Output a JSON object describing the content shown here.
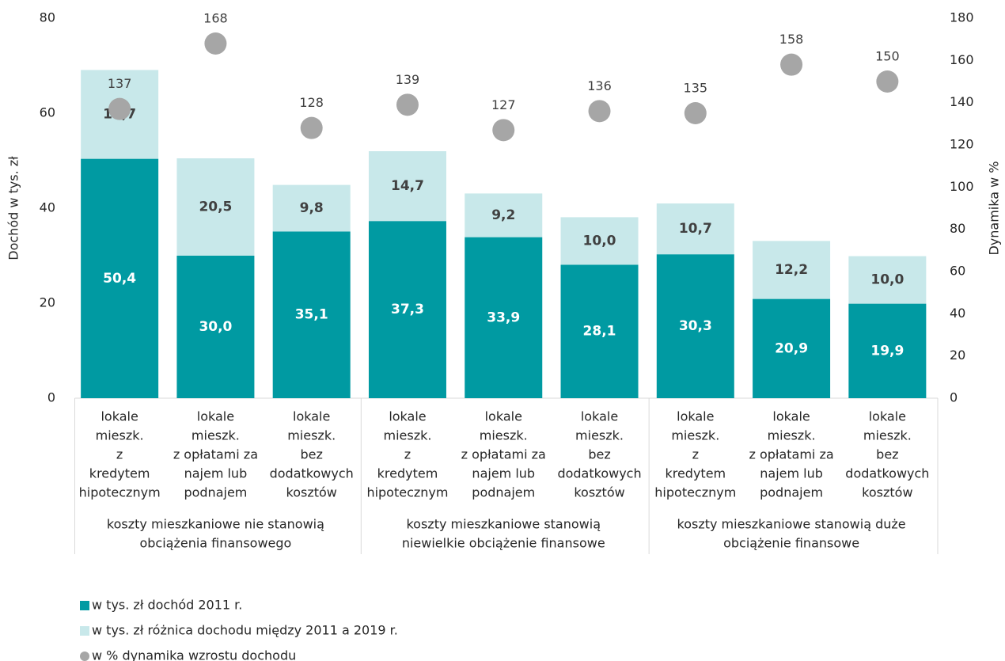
{
  "chart_data": {
    "type": "bar",
    "stacked": true,
    "ylabel": "Dochód w tys. zł",
    "y2label": "Dynamika w %",
    "categories": [
      [
        "lokale",
        "mieszk.",
        "z",
        "kredytem",
        "hipotecznym"
      ],
      [
        "lokale",
        "mieszk.",
        "z opłatami za",
        "najem lub",
        "podnajem"
      ],
      [
        "lokale",
        "mieszk.",
        "bez",
        "dodatkowych",
        "kosztów"
      ],
      [
        "lokale",
        "mieszk.",
        "z",
        "kredytem",
        "hipotecznym"
      ],
      [
        "lokale",
        "mieszk.",
        "z opłatami za",
        "najem lub",
        "podnajem"
      ],
      [
        "lokale",
        "mieszk.",
        "bez",
        "dodatkowych",
        "kosztów"
      ],
      [
        "lokale",
        "mieszk.",
        "z",
        "kredytem",
        "hipotecznym"
      ],
      [
        "lokale",
        "mieszk.",
        "z opłatami za",
        "najem lub",
        "podnajem"
      ],
      [
        "lokale",
        "mieszk.",
        "bez",
        "dodatkowych",
        "kosztów"
      ]
    ],
    "groups": [
      [
        "koszty mieszkaniowe nie stanowią",
        "obciążenia finansowego"
      ],
      [
        "koszty mieszkaniowe stanowią",
        "niewielkie obciążenie finansowe"
      ],
      [
        "koszty mieszkaniowe stanowią duże",
        "obciążenie finansowe"
      ]
    ],
    "series": [
      {
        "name": "w tys. zł dochód 2011 r.",
        "type": "bar",
        "color": "#009aa2",
        "values": [
          50.4,
          30.0,
          35.1,
          37.3,
          33.9,
          28.1,
          30.3,
          20.9,
          19.9
        ],
        "value_labels": [
          "50,4",
          "30,0",
          "35,1",
          "37,3",
          "33,9",
          "28,1",
          "30,3",
          "20,9",
          "19,9"
        ]
      },
      {
        "name": "w tys. zł różnica dochodu między 2011 a 2019 r.",
        "type": "bar",
        "color": "#c8e8ea",
        "values": [
          18.7,
          20.5,
          9.8,
          14.7,
          9.2,
          10.0,
          10.7,
          12.2,
          10.0
        ],
        "value_labels": [
          "18,7",
          "20,5",
          "9,8",
          "14,7",
          "9,2",
          "10,0",
          "10,7",
          "12,2",
          "10,0"
        ]
      },
      {
        "name": "w % dynamika wzrostu dochodu",
        "type": "scatter",
        "axis": "y2",
        "color": "#a6a6a6",
        "values": [
          137,
          168,
          128,
          139,
          127,
          136,
          135,
          158,
          150
        ]
      }
    ],
    "ylim": [
      0,
      80
    ],
    "yticks": [
      0,
      20,
      40,
      60,
      80
    ],
    "y2lim": [
      0,
      180
    ],
    "y2ticks": [
      0,
      20,
      40,
      60,
      80,
      100,
      120,
      140,
      160,
      180
    ]
  }
}
